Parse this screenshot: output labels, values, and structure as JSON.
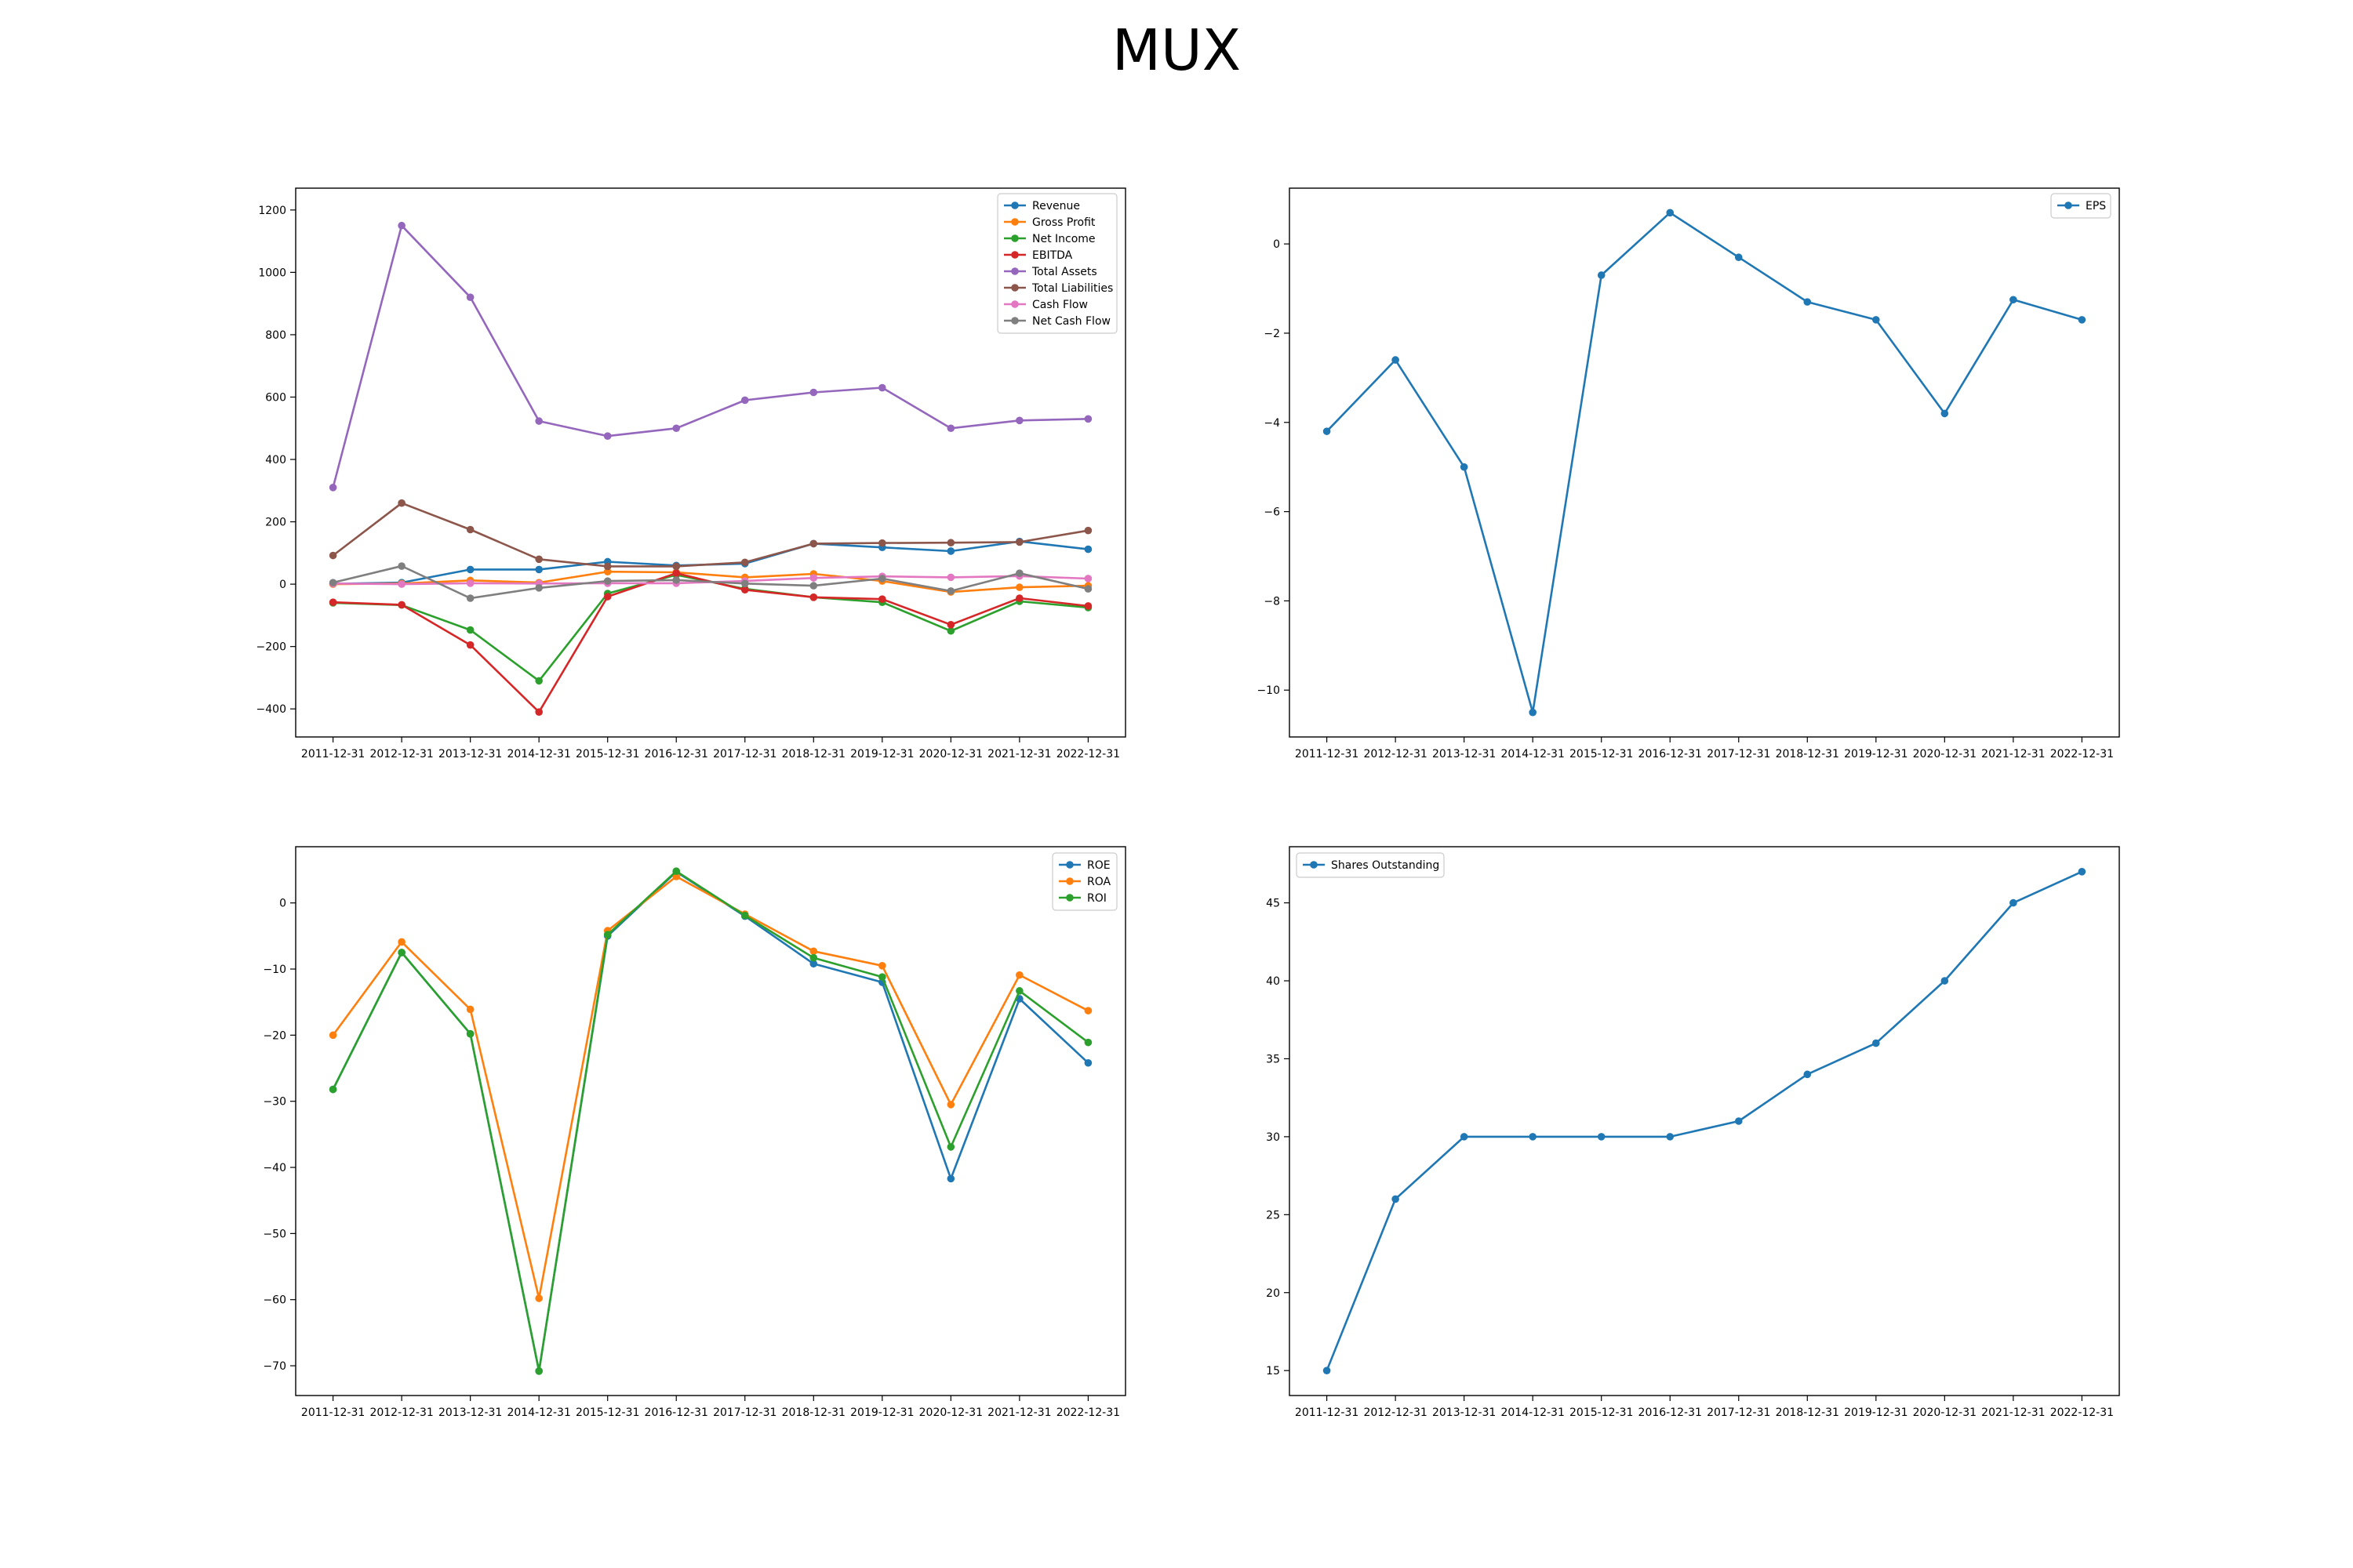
{
  "title": "MUX",
  "chart_data": [
    {
      "type": "line",
      "categories": [
        "2011-12-31",
        "2012-12-31",
        "2013-12-31",
        "2014-12-31",
        "2015-12-31",
        "2016-12-31",
        "2017-12-31",
        "2018-12-31",
        "2019-12-31",
        "2020-12-31",
        "2021-12-31",
        "2022-12-31"
      ],
      "ylim": [
        -490,
        1270
      ],
      "yticks": [
        -400,
        -200,
        0,
        200,
        400,
        600,
        800,
        1000,
        1200
      ],
      "legend_position": "upper right",
      "series": [
        {
          "name": "Revenue",
          "color": "#1f77b4",
          "values": [
            1,
            5,
            47,
            47,
            72,
            60,
            66,
            130,
            118,
            106,
            137,
            112
          ]
        },
        {
          "name": "Gross Profit",
          "color": "#ff7f0e",
          "values": [
            0,
            2,
            12,
            5,
            40,
            38,
            22,
            33,
            10,
            -25,
            -10,
            -5
          ]
        },
        {
          "name": "Net Income",
          "color": "#2ca02c",
          "values": [
            -60,
            -67,
            -147,
            -310,
            -30,
            30,
            -15,
            -42,
            -58,
            -150,
            -55,
            -75
          ]
        },
        {
          "name": "EBITDA",
          "color": "#d62728",
          "values": [
            -58,
            -66,
            -195,
            -410,
            -40,
            35,
            -18,
            -42,
            -48,
            -130,
            -45,
            -70
          ]
        },
        {
          "name": "Total Assets",
          "color": "#9467bd",
          "values": [
            310,
            1150,
            920,
            523,
            475,
            500,
            590,
            615,
            630,
            500,
            525,
            530
          ]
        },
        {
          "name": "Total Liabilities",
          "color": "#8c564b",
          "values": [
            92,
            260,
            175,
            80,
            57,
            57,
            70,
            130,
            132,
            133,
            135,
            172
          ]
        },
        {
          "name": "Cash Flow",
          "color": "#e377c2",
          "values": [
            2,
            0,
            3,
            2,
            3,
            3,
            10,
            20,
            25,
            22,
            26,
            18
          ]
        },
        {
          "name": "Net Cash Flow",
          "color": "#7f7f7f",
          "values": [
            5,
            58,
            -45,
            -12,
            10,
            13,
            2,
            -5,
            18,
            -22,
            35,
            -15
          ]
        }
      ]
    },
    {
      "type": "line",
      "categories": [
        "2011-12-31",
        "2012-12-31",
        "2013-12-31",
        "2014-12-31",
        "2015-12-31",
        "2016-12-31",
        "2017-12-31",
        "2018-12-31",
        "2019-12-31",
        "2020-12-31",
        "2021-12-31",
        "2022-12-31"
      ],
      "ylim": [
        -11.05,
        1.25
      ],
      "yticks": [
        -10,
        -8,
        -6,
        -4,
        -2,
        0
      ],
      "legend_position": "upper right",
      "series": [
        {
          "name": "EPS",
          "color": "#1f77b4",
          "values": [
            -4.2,
            -2.6,
            -5.0,
            -10.5,
            -0.7,
            0.7,
            -0.3,
            -1.3,
            -1.7,
            -3.8,
            -1.25,
            -1.7
          ]
        }
      ]
    },
    {
      "type": "line",
      "categories": [
        "2011-12-31",
        "2012-12-31",
        "2013-12-31",
        "2014-12-31",
        "2015-12-31",
        "2016-12-31",
        "2017-12-31",
        "2018-12-31",
        "2019-12-31",
        "2020-12-31",
        "2021-12-31",
        "2022-12-31"
      ],
      "ylim": [
        -74.5,
        8.5
      ],
      "yticks": [
        -70,
        -60,
        -50,
        -40,
        -30,
        -20,
        -10,
        0
      ],
      "legend_position": "upper right",
      "series": [
        {
          "name": "ROE",
          "color": "#1f77b4",
          "values": [
            -28.2,
            -7.5,
            -19.8,
            -70.8,
            -5.0,
            4.7,
            -2.0,
            -9.2,
            -12.0,
            -41.7,
            -14.5,
            -24.2
          ]
        },
        {
          "name": "ROA",
          "color": "#ff7f0e",
          "values": [
            -20.0,
            -5.9,
            -16.1,
            -59.8,
            -4.2,
            4.0,
            -1.7,
            -7.3,
            -9.5,
            -30.5,
            -10.9,
            -16.3
          ]
        },
        {
          "name": "ROI",
          "color": "#2ca02c",
          "values": [
            -28.2,
            -7.5,
            -19.8,
            -70.8,
            -4.8,
            4.8,
            -1.9,
            -8.3,
            -11.2,
            -36.9,
            -13.3,
            -21.1
          ]
        }
      ]
    },
    {
      "type": "line",
      "categories": [
        "2011-12-31",
        "2012-12-31",
        "2013-12-31",
        "2014-12-31",
        "2015-12-31",
        "2016-12-31",
        "2017-12-31",
        "2018-12-31",
        "2019-12-31",
        "2020-12-31",
        "2021-12-31",
        "2022-12-31"
      ],
      "ylim": [
        13.4,
        48.6
      ],
      "yticks": [
        15,
        20,
        25,
        30,
        35,
        40,
        45
      ],
      "legend_position": "upper left",
      "series": [
        {
          "name": "Shares Outstanding",
          "color": "#1f77b4",
          "values": [
            15,
            26,
            30,
            30,
            30,
            30,
            31,
            34,
            36,
            40,
            45,
            47
          ]
        }
      ]
    }
  ]
}
